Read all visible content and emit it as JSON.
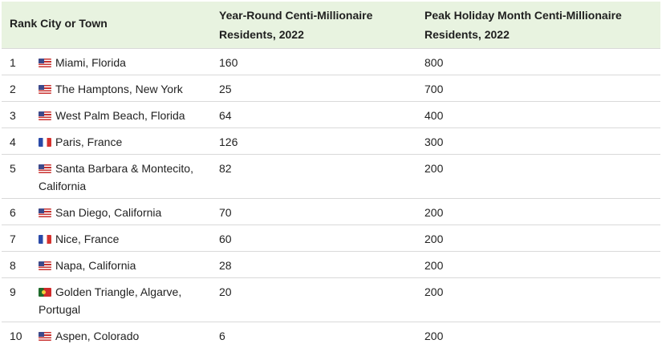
{
  "table": {
    "header": {
      "rank_city": "Rank City or Town",
      "year_round": "Year-Round Centi-Millionaire Residents, 2022",
      "peak_holiday": "Peak Holiday Month Centi-Millionaire Residents, 2022"
    },
    "rows": [
      {
        "rank": "1",
        "flag": "us-flag-icon",
        "city": "Miami, Florida",
        "year_round": "160",
        "peak": "800"
      },
      {
        "rank": "2",
        "flag": "us-flag-icon",
        "city": "The Hamptons, New York",
        "year_round": "25",
        "peak": "700"
      },
      {
        "rank": "3",
        "flag": "us-flag-icon",
        "city": "West Palm Beach, Florida",
        "year_round": "64",
        "peak": "400"
      },
      {
        "rank": "4",
        "flag": "france-flag-icon",
        "city": "Paris, France",
        "year_round": "126",
        "peak": "300"
      },
      {
        "rank": "5",
        "flag": "us-flag-icon",
        "city": "Santa Barbara & Montecito, California",
        "year_round": "82",
        "peak": "200"
      },
      {
        "rank": "6",
        "flag": "us-flag-icon",
        "city": "San Diego, California",
        "year_round": "70",
        "peak": "200"
      },
      {
        "rank": "7",
        "flag": "france-flag-icon",
        "city": "Nice, France",
        "year_round": "60",
        "peak": "200"
      },
      {
        "rank": "8",
        "flag": "us-flag-icon",
        "city": "Napa, California",
        "year_round": "28",
        "peak": "200"
      },
      {
        "rank": "9",
        "flag": "portugal-flag-icon",
        "city": "Golden Triangle, Algarve, Portugal",
        "year_round": "20",
        "peak": "200"
      },
      {
        "rank": "10",
        "flag": "us-flag-icon",
        "city": "Aspen, Colorado",
        "year_round": "6",
        "peak": "200"
      }
    ]
  },
  "colors": {
    "header_background": "#e8f3e0",
    "row_divider": "#d9d9d9",
    "text": "#222222"
  }
}
